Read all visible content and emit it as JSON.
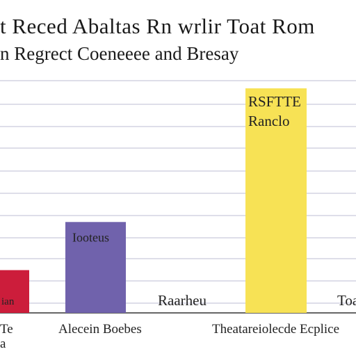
{
  "chart_data": {
    "type": "bar",
    "title": "t   Reced Abaltas Rn wrlir   Toat Rom",
    "subtitle": "n  Regrect Coeneeee and Bresay",
    "categories": [
      "Tontey",
      "Alecein Boebes",
      "Raarheu",
      "Theatareiolecde Ecplice",
      "Toa"
    ],
    "values": [
      8,
      17,
      0,
      42,
      0
    ],
    "bar_labels": [
      "ian",
      "Iooteus",
      "Raarheu",
      "RSFTTE Ranclo",
      "Toa"
    ],
    "colors": [
      "#cc1d3b",
      "#7062ac",
      "#ffffff",
      "#f7e255",
      "#ffffff"
    ],
    "ylim": [
      0,
      45
    ],
    "grid": true,
    "legend": "none"
  }
}
